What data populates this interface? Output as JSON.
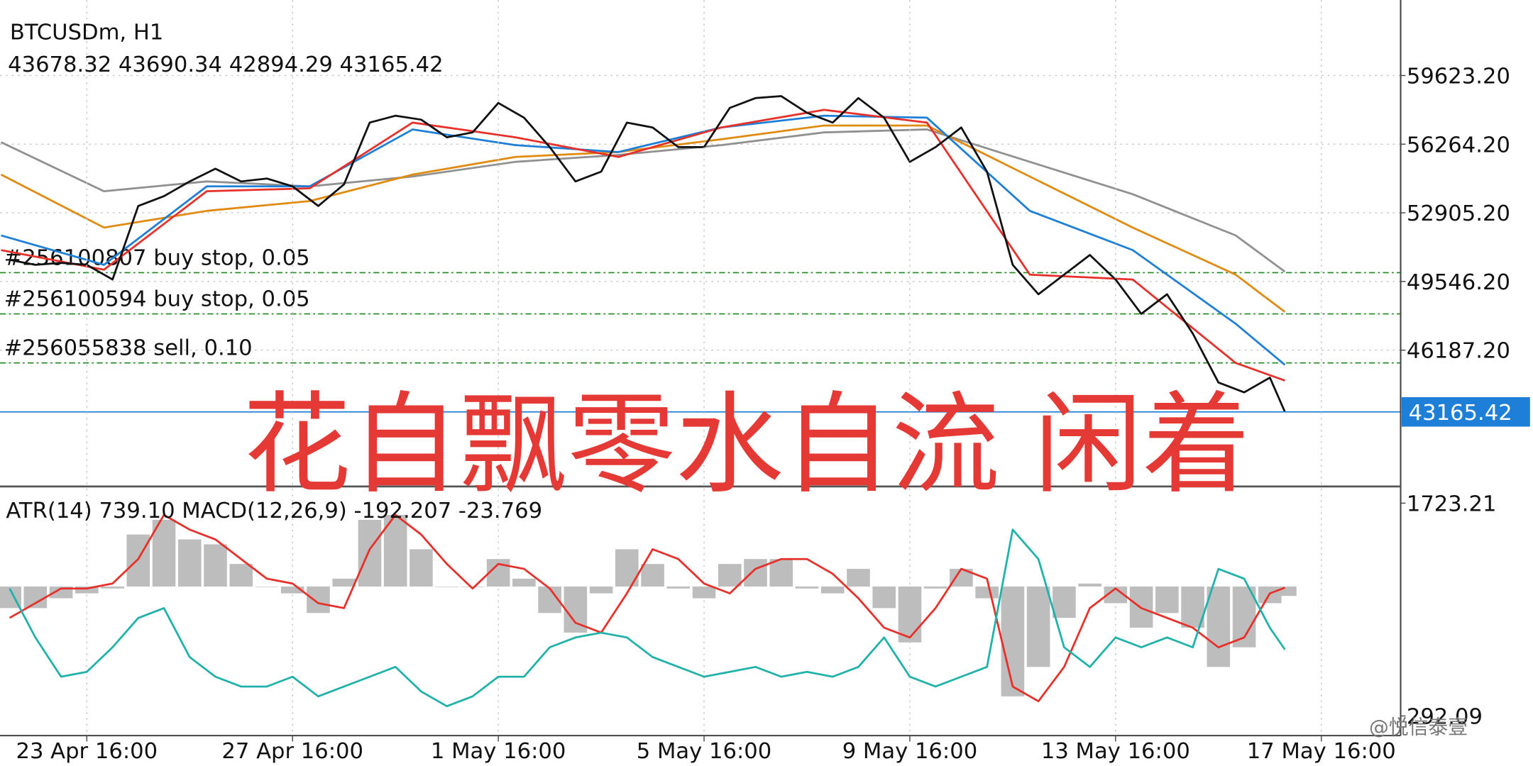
{
  "chart_data": [
    {
      "type": "line",
      "title": "BTCUSDm, H1",
      "ohlc": "43678.32 43690.34 42894.29 43165.42",
      "overlay_text": "花自飘零水自流 闲着",
      "watermark": "@悦信泰壹",
      "xlim": [
        -40.5,
        613
      ],
      "ylim": [
        39565,
        63078
      ],
      "yticks": [
        {
          "value": 46187.2,
          "label": "46187.20"
        },
        {
          "value": 49546.2,
          "label": "49546.20"
        },
        {
          "value": 52905.2,
          "label": "52905.20"
        },
        {
          "value": 56264.2,
          "label": "56264.20"
        },
        {
          "value": 59623.2,
          "label": "59623.20"
        }
      ],
      "grid": true,
      "x": [
        -36,
        -24,
        -12,
        0,
        12,
        24,
        36,
        48,
        60,
        72,
        84,
        96,
        108,
        120,
        132,
        144,
        156,
        168,
        180,
        192,
        204,
        216,
        228,
        240,
        252,
        264,
        276,
        288,
        300,
        312,
        324,
        336,
        348,
        360,
        372,
        384,
        396,
        408,
        420,
        432,
        444,
        456,
        468,
        480,
        492,
        504,
        516,
        528,
        540,
        552,
        559
      ],
      "series": [
        {
          "color": "#909090",
          "x": [
            -40,
            8,
            56,
            104,
            152,
            200,
            248,
            296,
            344,
            392,
            440,
            488,
            536,
            559
          ],
          "values": [
            56360,
            53961,
            54441,
            54201,
            54680,
            55400,
            55736,
            56216,
            56840,
            56984,
            55400,
            53817,
            51801,
            50026
          ]
        },
        {
          "color": "#e08a10",
          "x": [
            -40,
            8,
            56,
            104,
            152,
            200,
            248,
            296,
            344,
            392,
            440,
            488,
            536,
            559
          ],
          "values": [
            54776,
            52185,
            53001,
            53481,
            54776,
            55640,
            55880,
            56504,
            57176,
            57176,
            54680,
            52185,
            49882,
            48058
          ]
        },
        {
          "color": "#1e7fd8",
          "x": [
            -40,
            8,
            56,
            104,
            152,
            200,
            248,
            296,
            344,
            392,
            440,
            488,
            536,
            559
          ],
          "values": [
            51801,
            50362,
            54201,
            54201,
            56984,
            56216,
            55880,
            57080,
            57656,
            57560,
            53001,
            51081,
            47483,
            45467
          ]
        },
        {
          "color": "#e8302a",
          "x": [
            -40,
            8,
            56,
            104,
            152,
            200,
            248,
            296,
            344,
            392,
            440,
            488,
            536,
            559
          ],
          "values": [
            51081,
            50122,
            53961,
            54105,
            57320,
            56600,
            55640,
            57080,
            57943,
            57320,
            49882,
            49642,
            45563,
            44699
          ]
        },
        {
          "color": "#111111",
          "values": [
            50602,
            50362,
            50458,
            50362,
            49642,
            53241,
            53721,
            54441,
            55064,
            54441,
            54584,
            54201,
            53241,
            54297,
            57320,
            57656,
            57464,
            56600,
            56840,
            58279,
            57560,
            56120,
            54441,
            54920,
            57320,
            57080,
            56120,
            56120,
            58039,
            58519,
            58615,
            57800,
            57320,
            58519,
            57560,
            55400,
            56120,
            57080,
            54920,
            50362,
            48922,
            49882,
            50842,
            49642,
            47962,
            48922,
            47003,
            44603,
            44123,
            44843,
            43165.42
          ]
        }
      ],
      "orders": [
        {
          "label": "#256100807 buy stop, 0.05",
          "price": 49978
        },
        {
          "label": "#256100594 buy stop, 0.05",
          "price": 47962
        },
        {
          "label": "#256055838 sell, 0.10",
          "price": 45563
        }
      ],
      "order_color": "#1a8a1a",
      "current_price": 43165.42,
      "current_color": "#1e7fd8"
    },
    {
      "type": "line",
      "indicator_label": "ATR(14) 739.10 MACD(12,26,9) -192.207 -23.769",
      "xlim": [
        -40.5,
        613
      ],
      "ylim": [
        160.2,
        1828.7
      ],
      "yticks": [
        292.09,
        1723.21
      ],
      "y2lim": [
        -3040,
        2020
      ],
      "xticks": [
        {
          "value": 0,
          "label": "23 Apr 16:00"
        },
        {
          "value": 96,
          "label": "27 Apr 16:00"
        },
        {
          "value": 192,
          "label": "1 May 16:00"
        },
        {
          "value": 288,
          "label": "5 May 16:00"
        },
        {
          "value": 384,
          "label": "9 May 16:00"
        },
        {
          "value": 480,
          "label": "13 May 16:00"
        },
        {
          "value": 576,
          "label": "17 May 16:00"
        }
      ],
      "x": [
        -36,
        -24,
        -12,
        0,
        12,
        24,
        36,
        48,
        60,
        72,
        84,
        96,
        108,
        120,
        132,
        144,
        156,
        168,
        180,
        192,
        204,
        216,
        228,
        240,
        252,
        264,
        276,
        288,
        300,
        312,
        324,
        336,
        348,
        360,
        372,
        384,
        396,
        408,
        420,
        432,
        444,
        456,
        468,
        480,
        492,
        504,
        516,
        528,
        540,
        552,
        559
      ],
      "series": [
        {
          "type": "bar",
          "axis": "y2",
          "color": "#bdbdbd",
          "values": [
            -440,
            -440,
            -240,
            -140,
            -40,
            1060,
            1360,
            960,
            860,
            460,
            0,
            -140,
            -540,
            160,
            1360,
            1460,
            760,
            0,
            0,
            560,
            160,
            -540,
            -940,
            -140,
            760,
            460,
            -40,
            -240,
            460,
            560,
            560,
            -40,
            -140,
            360,
            -440,
            -1140,
            -40,
            360,
            -240,
            -2240,
            -1640,
            -640,
            60,
            -340,
            -840,
            -540,
            -840,
            -1640,
            -1240,
            -340,
            -192.207
          ]
        },
        {
          "axis": "y2",
          "color": "#e8302a",
          "values": [
            -640,
            -340,
            -40,
            -40,
            60,
            560,
            1460,
            1160,
            960,
            560,
            160,
            60,
            -340,
            -440,
            760,
            1460,
            1060,
            460,
            -40,
            460,
            360,
            -40,
            -740,
            -940,
            -140,
            760,
            560,
            60,
            -140,
            360,
            560,
            560,
            260,
            -240,
            -840,
            -1040,
            -440,
            360,
            160,
            -2040,
            -2340,
            -1640,
            -440,
            -40,
            -440,
            -640,
            -840,
            -1240,
            -1040,
            -140,
            -23.769
          ]
        },
        {
          "color": "#20b2aa",
          "values": [
            1149,
            820,
            556,
            589,
            754,
            951,
            1017,
            688,
            556,
            490,
            490,
            556,
            424,
            490,
            556,
            622,
            457,
            358,
            424,
            556,
            556,
            754,
            820,
            852,
            820,
            688,
            622,
            556,
            589,
            622,
            556,
            589,
            556,
            622,
            820,
            556,
            490,
            556,
            622,
            1545,
            1347,
            754,
            622,
            820,
            754,
            820,
            754,
            1281,
            1215,
            885,
            739.1
          ]
        }
      ]
    }
  ]
}
